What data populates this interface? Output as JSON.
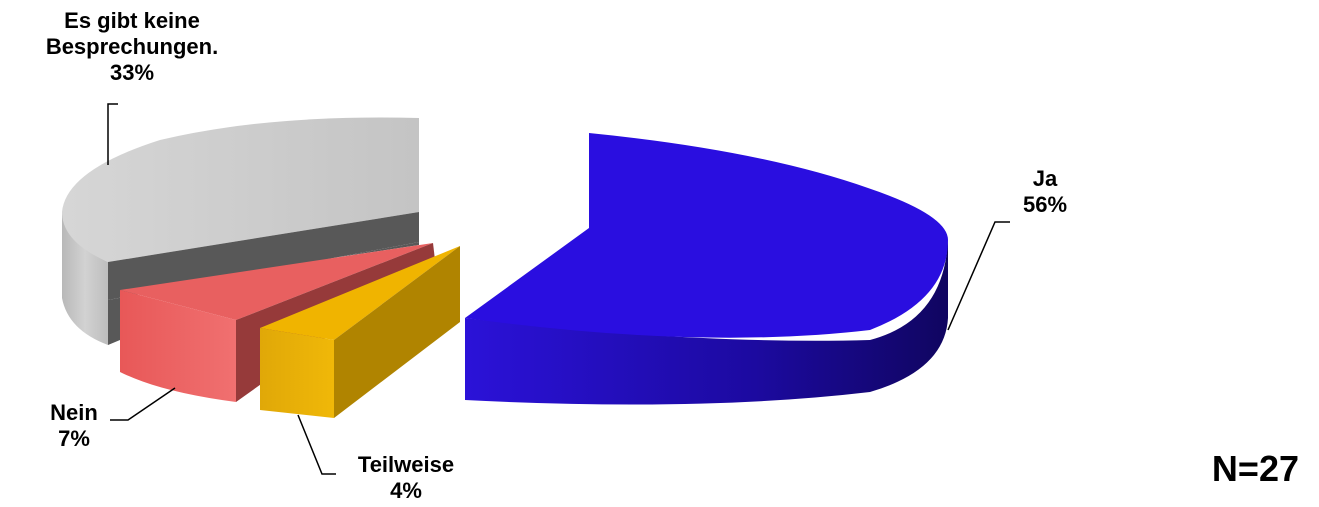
{
  "chart_data": {
    "type": "pie",
    "style": "3d-exploded",
    "slices": [
      {
        "label": "Ja",
        "value": 56,
        "value_label": "56%",
        "color": "#2a0ee0",
        "side_color": "#16077a"
      },
      {
        "label": "Teilweise",
        "value": 4,
        "value_label": "4%",
        "color": "#e8b004",
        "side_color": "#a88000"
      },
      {
        "label": "Nein",
        "value": 7,
        "value_label": "7%",
        "color": "#e85c5c",
        "side_color": "#963a3a"
      },
      {
        "label": "Es gibt keine Besprechungen.",
        "value": 33,
        "value_label": "33%",
        "color": "#c8c8c8",
        "side_color": "#585858"
      }
    ],
    "labels": {
      "ja": {
        "name": "Ja",
        "value": "56%"
      },
      "teilweise": {
        "name": "Teilweise",
        "value": "4%"
      },
      "nein": {
        "name": "Nein",
        "value": "7%"
      },
      "keine": {
        "name_line1": "Es gibt keine",
        "name_line2": "Besprechungen.",
        "value": "33%"
      }
    },
    "legend": "none",
    "annotation": "N=27"
  }
}
